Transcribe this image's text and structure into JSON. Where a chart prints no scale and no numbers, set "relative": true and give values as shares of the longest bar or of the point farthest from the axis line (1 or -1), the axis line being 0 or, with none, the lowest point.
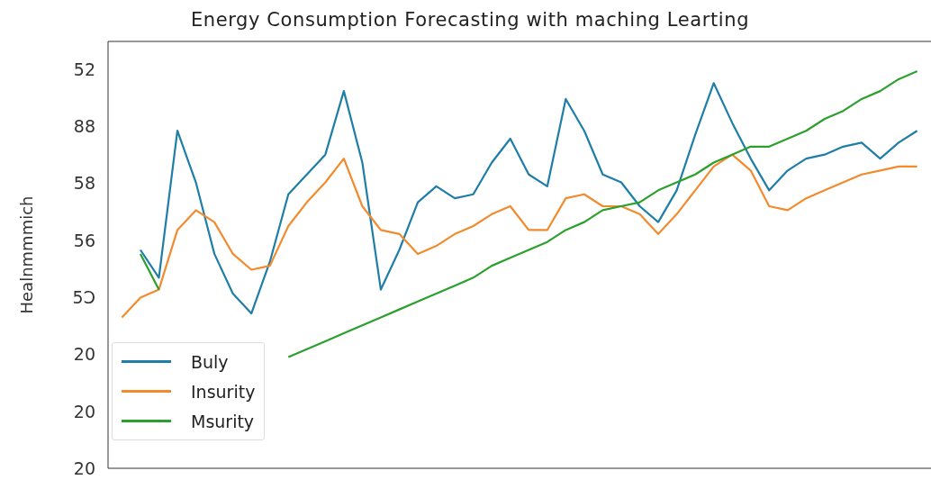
{
  "chart_data": {
    "type": "line",
    "title": "Energy Consumption Forecasting with maching Learting",
    "ylabel": "Healnmmmich",
    "categories": [
      null,
      null,
      null,
      null,
      null,
      null,
      null,
      null,
      null,
      null,
      null,
      null,
      null,
      null,
      null,
      null,
      null,
      null,
      null,
      null,
      null,
      null,
      null,
      null,
      null,
      null,
      null,
      null,
      null,
      null,
      null,
      null,
      null,
      null,
      null,
      null,
      null,
      null,
      null,
      null,
      null,
      null,
      null,
      null
    ],
    "series": [
      {
        "name": "Buly",
        "color": "#1f7ea8",
        "values": [
          null,
          0.55,
          0.48,
          0.85,
          0.72,
          0.54,
          0.44,
          0.39,
          0.52,
          0.69,
          0.74,
          0.79,
          0.95,
          0.77,
          0.45,
          0.55,
          0.67,
          0.71,
          0.68,
          0.69,
          0.77,
          0.83,
          0.74,
          0.71,
          0.93,
          0.85,
          0.74,
          0.72,
          0.66,
          0.62,
          0.7,
          0.84,
          0.97,
          0.87,
          0.78,
          0.7,
          0.75,
          0.78,
          0.79,
          0.81,
          0.82,
          0.78,
          0.82,
          0.85
        ]
      },
      {
        "name": "Insurity",
        "color": "#f28a2e",
        "values": [
          0.38,
          0.43,
          0.45,
          0.6,
          0.65,
          0.62,
          0.54,
          0.5,
          0.51,
          0.61,
          0.67,
          0.72,
          0.78,
          0.66,
          0.6,
          0.59,
          0.54,
          0.56,
          0.59,
          0.61,
          0.64,
          0.66,
          0.6,
          0.6,
          0.68,
          0.69,
          0.66,
          0.66,
          0.64,
          0.59,
          0.64,
          0.7,
          0.76,
          0.79,
          0.75,
          0.66,
          0.65,
          0.68,
          0.7,
          0.72,
          0.74,
          0.75,
          0.76,
          0.76
        ]
      },
      {
        "name": "Msurity",
        "color": "#2ca02c",
        "values": [
          null,
          0.54,
          0.45,
          null,
          null,
          null,
          null,
          null,
          null,
          0.28,
          0.3,
          0.32,
          0.34,
          0.36,
          0.38,
          0.4,
          0.42,
          0.44,
          0.46,
          0.48,
          0.51,
          0.53,
          0.55,
          0.57,
          0.6,
          0.62,
          0.65,
          0.66,
          0.67,
          0.7,
          0.72,
          0.74,
          0.77,
          0.79,
          0.81,
          0.81,
          0.83,
          0.85,
          0.88,
          0.9,
          0.93,
          0.95,
          0.98,
          1
        ]
      }
    ],
    "relative": true,
    "annotations": [
      "20",
      "20",
      "20",
      "5Ↄ",
      "56",
      "58",
      "88",
      "52"
    ],
    "legend": "bottom left",
    "line_style": "solid"
  }
}
